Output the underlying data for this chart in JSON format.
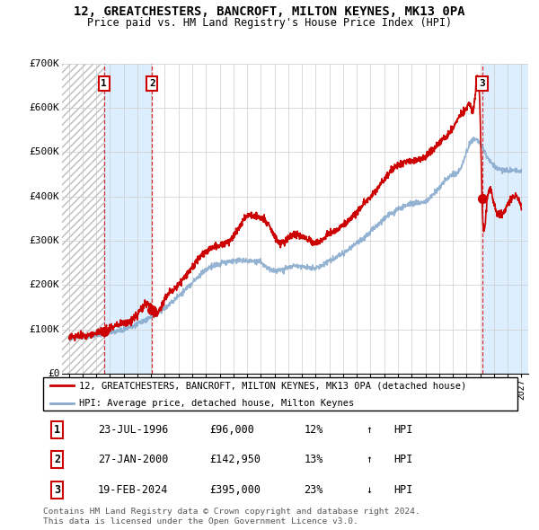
{
  "title": "12, GREATCHESTERS, BANCROFT, MILTON KEYNES, MK13 0PA",
  "subtitle": "Price paid vs. HM Land Registry's House Price Index (HPI)",
  "ylim": [
    0,
    700000
  ],
  "yticks": [
    0,
    100000,
    200000,
    300000,
    400000,
    500000,
    600000,
    700000
  ],
  "ytick_labels": [
    "£0",
    "£100K",
    "£200K",
    "£300K",
    "£400K",
    "£500K",
    "£600K",
    "£700K"
  ],
  "sale_dates": [
    1996.56,
    2000.07,
    2024.13
  ],
  "sale_prices": [
    96000,
    142950,
    395000
  ],
  "sale_labels": [
    "1",
    "2",
    "3"
  ],
  "legend_line1": "12, GREATCHESTERS, BANCROFT, MILTON KEYNES, MK13 0PA (detached house)",
  "legend_line2": "HPI: Average price, detached house, Milton Keynes",
  "table_data": [
    [
      "1",
      "23-JUL-1996",
      "£96,000",
      "12%",
      "↑",
      "HPI"
    ],
    [
      "2",
      "27-JAN-2000",
      "£142,950",
      "13%",
      "↑",
      "HPI"
    ],
    [
      "3",
      "19-FEB-2024",
      "£395,000",
      "23%",
      "↓",
      "HPI"
    ]
  ],
  "footnote": "Contains HM Land Registry data © Crown copyright and database right 2024.\nThis data is licensed under the Open Government Licence v3.0.",
  "line_color": "#cc0000",
  "hpi_color": "#88aacc",
  "marker_color": "#cc0000",
  "shade_color": "#ddeeff",
  "background_color": "#ffffff",
  "grid_color": "#cccccc",
  "xlim": [
    1993.5,
    2027.5
  ],
  "xtick_start": 1994,
  "xtick_end": 2027
}
